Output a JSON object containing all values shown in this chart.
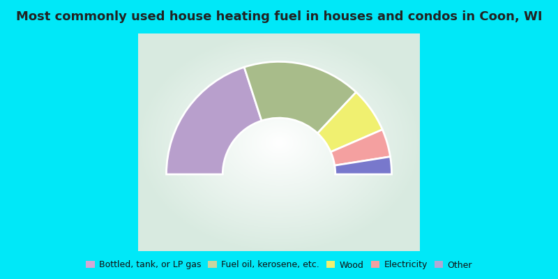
{
  "title": "Most commonly used house heating fuel in houses and condos in Coon, WI",
  "segments": [
    {
      "label": "Bottled, tank, or LP gas",
      "value": 40,
      "color": "#b89fcc"
    },
    {
      "label": "Fuel oil, kerosene, etc.",
      "value": 34,
      "color": "#a8bc8a"
    },
    {
      "label": "Wood",
      "value": 13,
      "color": "#f0f070"
    },
    {
      "label": "Electricity",
      "value": 8,
      "color": "#f4a0a0"
    },
    {
      "label": "Other",
      "value": 5,
      "color": "#7878cc"
    }
  ],
  "legend_colors": [
    "#d4a8d4",
    "#c8d4a0",
    "#f0f070",
    "#f4a0a0",
    "#b0a8d4"
  ],
  "bg_cyan": "#00e8f8",
  "title_fontsize": 13,
  "title_color": "#222222",
  "donut_inner_ratio": 0.5,
  "outer_r": 0.88
}
